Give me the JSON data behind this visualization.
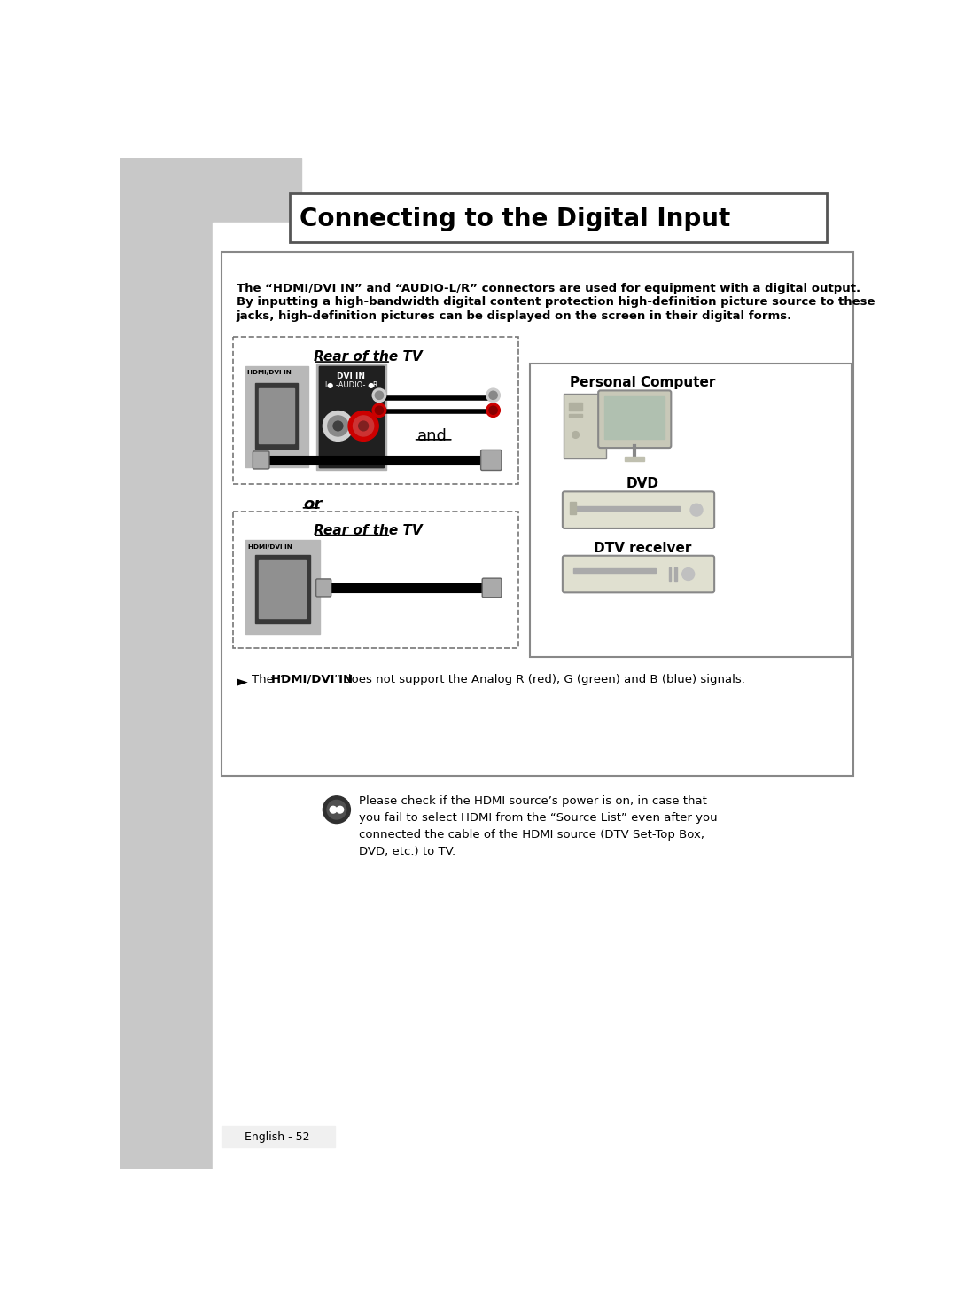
{
  "page_bg": "#ffffff",
  "sidebar_color": "#c8c8c8",
  "title_text": "Connecting to the Digital Input",
  "title_box_color": "#ffffff",
  "title_border_color": "#555555",
  "main_text_line1": "The “HDMI/DVI IN” and “AUDIO-L/R” connectors are used for equipment with a digital output.",
  "main_text_line2": "By inputting a high-bandwidth digital content protection high-definition picture source to these",
  "main_text_line3": "jacks, high-definition pictures can be displayed on the screen in their digital forms.",
  "rear_tv_label": "Rear of the TV",
  "hdmi_label": "HDMI/DVI IN",
  "dvi_label": "DVI IN",
  "and_label": "and",
  "or_label": "or",
  "pc_label": "Personal Computer",
  "dvd_label": "DVD",
  "dtv_label": "DTV receiver",
  "note_prefix": "The “",
  "note_bold": "HDMI/DVI IN",
  "note_suffix": "” does not support the Analog R (red), G (green) and B (blue) signals.",
  "tip_text": "Please check if the HDMI source’s power is on, in case that\nyou fail to select HDMI from the “Source List” even after you\nconnected the cable of the HDMI source (DTV Set-Top Box,\nDVD, etc.) to TV.",
  "footer_text": "English - 52",
  "red_color": "#cc0000",
  "white_color": "#ffffff",
  "black_color": "#000000"
}
